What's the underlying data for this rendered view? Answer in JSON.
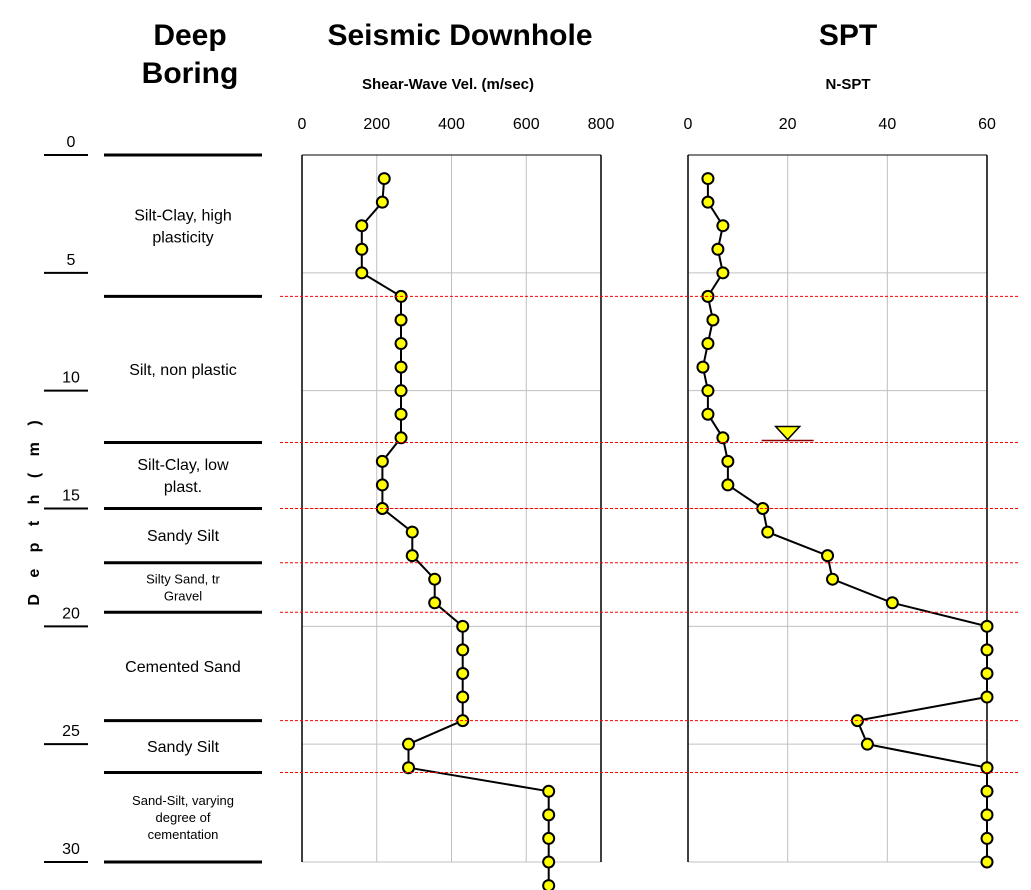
{
  "colors": {
    "marker_fill": "#ffff00",
    "marker_stroke": "#000000",
    "line": "#000000",
    "grid": "#c0c0c0",
    "boundary": "#ff0000"
  },
  "headers": {
    "deep_boring": [
      "Deep",
      "Boring"
    ],
    "seismic": "Seismic Downhole",
    "spt": "SPT"
  },
  "y_label": "D e p t h   ( m )",
  "depth_axis": {
    "ticks": [
      0,
      5,
      10,
      15,
      20,
      25,
      30
    ],
    "range": [
      0,
      30
    ]
  },
  "layers": [
    {
      "top": 0,
      "bottom": 6,
      "label": [
        "Silt-Clay, high",
        "plasticity"
      ],
      "small": false
    },
    {
      "top": 6,
      "bottom": 12.2,
      "label": [
        "Silt, non plastic"
      ],
      "small": false
    },
    {
      "top": 12.2,
      "bottom": 15,
      "label": [
        "Silt-Clay, low",
        "plast."
      ],
      "small": false
    },
    {
      "top": 15,
      "bottom": 17.3,
      "label": [
        "Sandy Silt"
      ],
      "small": false
    },
    {
      "top": 17.3,
      "bottom": 19.4,
      "label": [
        "Silty Sand, tr",
        "Gravel"
      ],
      "small": true
    },
    {
      "top": 19.4,
      "bottom": 24,
      "label": [
        "Cemented Sand"
      ],
      "small": false
    },
    {
      "top": 24,
      "bottom": 26.2,
      "label": [
        "Sandy Silt"
      ],
      "small": false
    },
    {
      "top": 26.2,
      "bottom": 30,
      "label": [
        "Sand-Silt, varying",
        "degree of",
        "cementation"
      ],
      "small": true
    }
  ],
  "boundaries": [
    6,
    12.2,
    15,
    17.3,
    19.4,
    24,
    26.2
  ],
  "water_table_depth": 12.2,
  "water_table_nspt": 20,
  "chart_data": [
    {
      "type": "line",
      "title": "Seismic Downhole",
      "xlabel": "Shear-Wave Vel. (m/sec)",
      "ylabel": "Depth (m)",
      "xlim": [
        0,
        800
      ],
      "xticks": [
        0,
        200,
        400,
        600,
        800
      ],
      "ylim": [
        0,
        30
      ],
      "grid": true,
      "series": [
        {
          "x": [
            220,
            215,
            160,
            160,
            160,
            265,
            265,
            265,
            265,
            265,
            265,
            265,
            215,
            215,
            215,
            295,
            295,
            355,
            355,
            430,
            430,
            430,
            430,
            430,
            285,
            285,
            660,
            660,
            660,
            660,
            660
          ],
          "y": [
            1,
            2,
            3,
            4,
            5,
            6,
            7,
            8,
            9,
            10,
            11,
            12,
            13,
            14,
            15,
            16,
            17,
            18,
            19,
            20,
            21,
            22,
            23,
            24,
            25,
            26,
            27,
            28,
            29,
            30,
            31
          ]
        }
      ]
    },
    {
      "type": "line",
      "title": "SPT",
      "xlabel": "N-SPT",
      "ylabel": "Depth (m)",
      "xlim": [
        0,
        60
      ],
      "xticks": [
        0,
        20,
        40,
        60
      ],
      "ylim": [
        0,
        30
      ],
      "grid": true,
      "series": [
        {
          "x": [
            4,
            4,
            7,
            6,
            7,
            4,
            5,
            4,
            3,
            4,
            4,
            7,
            8,
            8,
            15,
            16,
            28,
            29,
            41,
            60,
            60,
            60,
            60,
            34,
            36,
            60,
            60,
            60,
            60,
            60
          ],
          "y": [
            1,
            2,
            3,
            4,
            5,
            6,
            7,
            8,
            9,
            10,
            11,
            12,
            13,
            14,
            15,
            16,
            17,
            18,
            19,
            20,
            21,
            22,
            23,
            24,
            25,
            26,
            27,
            28,
            29,
            30
          ]
        }
      ]
    }
  ]
}
